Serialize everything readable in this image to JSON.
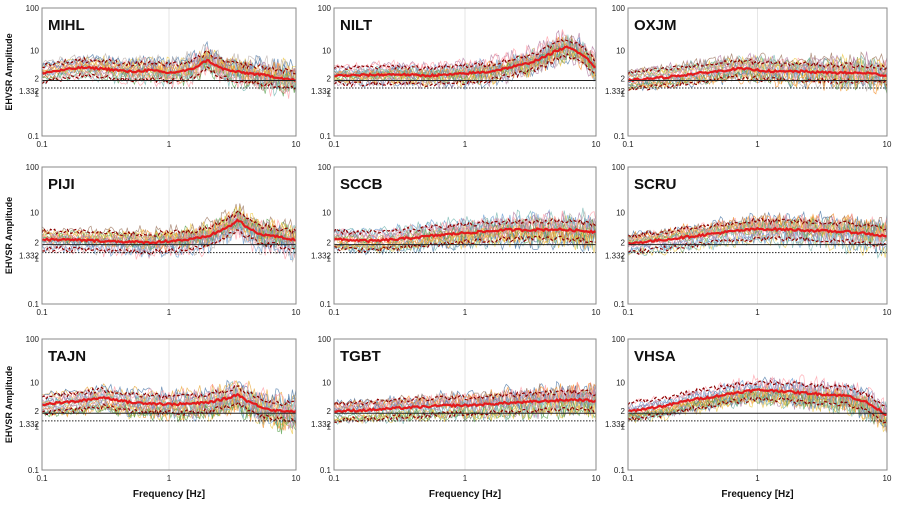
{
  "figure": {
    "ylabel": "EHVSR Amplitude",
    "xlabel": "Frequency [Hz]",
    "ref_line_solid": "2",
    "ref_line_dotted": "1.332"
  },
  "chart_data": [
    {
      "type": "line",
      "title": "MIHL",
      "xscale": "log",
      "yscale": "log",
      "xlim": [
        0.1,
        10
      ],
      "ylim": [
        0.1,
        100
      ],
      "x_tick_labels": [
        "0.1",
        "1",
        "10"
      ],
      "y_tick_labels": [
        "0.1",
        "1",
        "10",
        "100"
      ],
      "ylabel": "EHVSR Amplitude",
      "xlabel": "",
      "mean_curve": {
        "x": [
          0.1,
          0.2,
          0.3,
          0.5,
          0.7,
          1,
          1.5,
          2,
          2.5,
          3,
          4,
          5,
          7,
          10
        ],
        "y": [
          3,
          4,
          3.8,
          3.2,
          3.5,
          3,
          3.6,
          6,
          4,
          3.4,
          3,
          2.8,
          2.4,
          2
        ]
      }
    },
    {
      "type": "line",
      "title": "NILT",
      "xscale": "log",
      "yscale": "log",
      "xlim": [
        0.1,
        10
      ],
      "ylim": [
        0.1,
        100
      ],
      "x_tick_labels": [
        "0.1",
        "1",
        "10"
      ],
      "y_tick_labels": [
        "0.1",
        "1",
        "10",
        "100"
      ],
      "ylabel": "",
      "xlabel": "",
      "mean_curve": {
        "x": [
          0.1,
          0.2,
          0.3,
          0.5,
          0.7,
          1,
          1.5,
          2,
          3,
          4,
          5,
          6,
          7,
          8,
          10
        ],
        "y": [
          2.6,
          2.7,
          2.8,
          2.6,
          2.7,
          2.9,
          3.2,
          3.8,
          5,
          7,
          10,
          12,
          10,
          8,
          4
        ]
      }
    },
    {
      "type": "line",
      "title": "OXJM",
      "xscale": "log",
      "yscale": "log",
      "xlim": [
        0.1,
        10
      ],
      "ylim": [
        0.1,
        100
      ],
      "x_tick_labels": [
        "0.1",
        "1",
        "10"
      ],
      "y_tick_labels": [
        "0.1",
        "1",
        "10",
        "100"
      ],
      "ylabel": "",
      "xlabel": "",
      "mean_curve": {
        "x": [
          0.1,
          0.2,
          0.3,
          0.5,
          0.7,
          1,
          1.5,
          2,
          3,
          5,
          7,
          10
        ],
        "y": [
          2,
          2.4,
          2.8,
          3.3,
          3.8,
          3.5,
          3.2,
          3.3,
          3.1,
          3,
          3,
          2.6
        ]
      }
    },
    {
      "type": "line",
      "title": "PIJI",
      "xscale": "log",
      "yscale": "log",
      "xlim": [
        0.1,
        10
      ],
      "ylim": [
        0.1,
        100
      ],
      "x_tick_labels": [
        "0.1",
        "1",
        "10"
      ],
      "y_tick_labels": [
        "0.1",
        "1",
        "10",
        "100"
      ],
      "ylabel": "EHVSR Amplitude",
      "xlabel": "",
      "mean_curve": {
        "x": [
          0.1,
          0.2,
          0.3,
          0.5,
          0.7,
          1,
          1.5,
          2,
          3,
          3.5,
          4,
          5,
          7,
          10
        ],
        "y": [
          2.6,
          2.5,
          2.4,
          2.3,
          2.2,
          2.4,
          2.6,
          3,
          5,
          7,
          5,
          3.5,
          3,
          2.5
        ]
      }
    },
    {
      "type": "line",
      "title": "SCCB",
      "xscale": "log",
      "yscale": "log",
      "xlim": [
        0.1,
        10
      ],
      "ylim": [
        0.1,
        100
      ],
      "x_tick_labels": [
        "0.1",
        "1",
        "10"
      ],
      "y_tick_labels": [
        "0.1",
        "1",
        "10",
        "100"
      ],
      "ylabel": "",
      "xlabel": "",
      "mean_curve": {
        "x": [
          0.1,
          0.2,
          0.3,
          0.5,
          0.7,
          1,
          1.5,
          2,
          3,
          5,
          7,
          10
        ],
        "y": [
          2.6,
          2.4,
          2.6,
          3,
          3.3,
          3.6,
          3.9,
          4.2,
          4.2,
          4.3,
          4.1,
          3.8
        ]
      }
    },
    {
      "type": "line",
      "title": "SCRU",
      "xscale": "log",
      "yscale": "log",
      "xlim": [
        0.1,
        10
      ],
      "ylim": [
        0.1,
        100
      ],
      "x_tick_labels": [
        "0.1",
        "1",
        "10"
      ],
      "y_tick_labels": [
        "0.1",
        "1",
        "10",
        "100"
      ],
      "ylabel": "",
      "xlabel": "",
      "mean_curve": {
        "x": [
          0.1,
          0.2,
          0.3,
          0.5,
          0.7,
          1,
          1.5,
          2,
          3,
          5,
          7,
          10
        ],
        "y": [
          2.1,
          2.6,
          3,
          3.6,
          4,
          4.4,
          4.3,
          4.2,
          4,
          3.8,
          3.5,
          3
        ]
      }
    },
    {
      "type": "line",
      "title": "TAJN",
      "xscale": "log",
      "yscale": "log",
      "xlim": [
        0.1,
        10
      ],
      "ylim": [
        0.1,
        100
      ],
      "x_tick_labels": [
        "0.1",
        "1",
        "10"
      ],
      "y_tick_labels": [
        "0.1",
        "1",
        "10",
        "100"
      ],
      "ylabel": "EHVSR Amplitude",
      "xlabel": "Frequency [Hz]",
      "mean_curve": {
        "x": [
          0.1,
          0.2,
          0.3,
          0.4,
          0.5,
          0.7,
          1,
          1.5,
          2,
          3,
          3.5,
          4,
          5,
          6,
          7,
          10
        ],
        "y": [
          3.2,
          3.8,
          4.6,
          4,
          3.5,
          3.4,
          3.2,
          3.3,
          3.5,
          4.5,
          5.5,
          4,
          3,
          2.5,
          2.3,
          2.2
        ]
      }
    },
    {
      "type": "line",
      "title": "TGBT",
      "xscale": "log",
      "yscale": "log",
      "xlim": [
        0.1,
        10
      ],
      "ylim": [
        0.1,
        100
      ],
      "x_tick_labels": [
        "0.1",
        "1",
        "10"
      ],
      "y_tick_labels": [
        "0.1",
        "1",
        "10",
        "100"
      ],
      "ylabel": "",
      "xlabel": "Frequency [Hz]",
      "mean_curve": {
        "x": [
          0.1,
          0.2,
          0.3,
          0.5,
          0.7,
          1,
          1.5,
          2,
          3,
          5,
          7,
          10
        ],
        "y": [
          2.2,
          2.4,
          2.6,
          2.8,
          3,
          3,
          3.2,
          3.4,
          3.6,
          3.9,
          4.1,
          3.8
        ]
      }
    },
    {
      "type": "line",
      "title": "VHSA",
      "xscale": "log",
      "yscale": "log",
      "xlim": [
        0.1,
        10
      ],
      "ylim": [
        0.1,
        100
      ],
      "x_tick_labels": [
        "0.1",
        "1",
        "10"
      ],
      "y_tick_labels": [
        "0.1",
        "1",
        "10",
        "100"
      ],
      "ylabel": "",
      "xlabel": "Frequency [Hz]",
      "mean_curve": {
        "x": [
          0.1,
          0.2,
          0.3,
          0.5,
          0.7,
          1,
          1.5,
          2,
          3,
          5,
          7,
          10
        ],
        "y": [
          2.2,
          3,
          4,
          5,
          6,
          6.8,
          6.5,
          6,
          5.5,
          5,
          3.5,
          1.8
        ]
      }
    }
  ],
  "colors": {
    "mean_curve": "#e31a1c",
    "dashed_curves": "#8b0000",
    "ref_solid": "#222222",
    "ref_dotted": "#222222",
    "panel_border": "#888888",
    "thin_traces": [
      "#4e79a7",
      "#f28e2b",
      "#59a14f",
      "#edc948",
      "#76b7b2",
      "#b07aa1",
      "#ff9da7",
      "#9c755f",
      "#bab0ac",
      "#6a9fd4",
      "#e8a838"
    ]
  }
}
